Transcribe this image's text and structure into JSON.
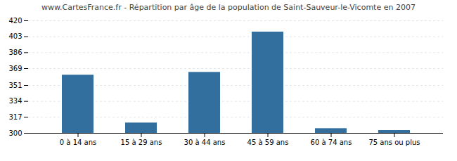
{
  "chart_data": {
    "type": "bar",
    "title": "www.CartesFrance.fr - Répartition par âge de la population de Saint-Sauveur-le-Vicomte en 2007",
    "categories": [
      "0 à 14 ans",
      "15 à 29 ans",
      "30 à 44 ans",
      "45 à 59 ans",
      "60 à 74 ans",
      "75 ans ou plus"
    ],
    "values": [
      362,
      311,
      365,
      408,
      305,
      303
    ],
    "color": "#336f9e",
    "ylim": [
      300,
      420
    ],
    "yticks": [
      300,
      317,
      334,
      351,
      369,
      386,
      403,
      420
    ],
    "grid": true
  }
}
